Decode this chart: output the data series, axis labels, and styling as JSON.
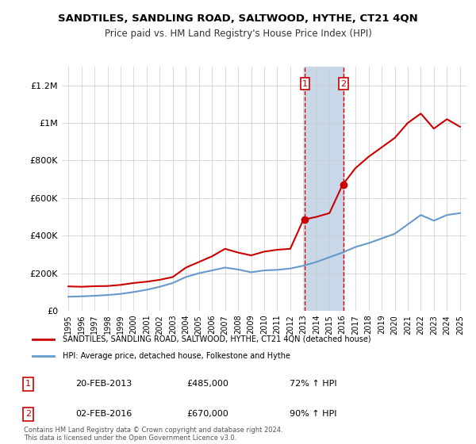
{
  "title": "SANDTILES, SANDLING ROAD, SALTWOOD, HYTHE, CT21 4QN",
  "subtitle": "Price paid vs. HM Land Registry's House Price Index (HPI)",
  "xlabel": "",
  "ylabel": "",
  "ylim": [
    0,
    1300000
  ],
  "yticks": [
    0,
    200000,
    400000,
    600000,
    800000,
    1000000,
    1200000
  ],
  "ytick_labels": [
    "£0",
    "£200K",
    "£400K",
    "£600K",
    "£800K",
    "£1M",
    "£1.2M"
  ],
  "bg_color": "#ffffff",
  "plot_bg_color": "#ffffff",
  "grid_color": "#cccccc",
  "legend_label_red": "SANDTILES, SANDLING ROAD, SALTWOOD, HYTHE, CT21 4QN (detached house)",
  "legend_label_blue": "HPI: Average price, detached house, Folkestone and Hythe",
  "transaction1_date": "20-FEB-2013",
  "transaction1_price": "£485,000",
  "transaction1_hpi": "72% ↑ HPI",
  "transaction1_year": 2013.12,
  "transaction2_date": "02-FEB-2016",
  "transaction2_price": "£670,000",
  "transaction2_hpi": "90% ↑ HPI",
  "transaction2_year": 2016.08,
  "footer": "Contains HM Land Registry data © Crown copyright and database right 2024.\nThis data is licensed under the Open Government Licence v3.0.",
  "red_color": "#cc0000",
  "blue_color": "#6699cc",
  "highlight_color": "#c8d8e8",
  "red_years": [
    1995,
    1996,
    1997,
    1998,
    1999,
    2000,
    2001,
    2002,
    2003,
    2004,
    2005,
    2006,
    2007,
    2008,
    2009,
    2010,
    2011,
    2012,
    2013,
    2014,
    2015,
    2016,
    2017,
    2018,
    2019,
    2020,
    2021,
    2022,
    2023,
    2024,
    2025
  ],
  "red_values": [
    130000,
    128000,
    131000,
    132000,
    138000,
    148000,
    155000,
    165000,
    180000,
    230000,
    260000,
    290000,
    330000,
    310000,
    295000,
    315000,
    325000,
    330000,
    485000,
    500000,
    520000,
    670000,
    760000,
    820000,
    870000,
    920000,
    1000000,
    1050000,
    970000,
    1020000,
    980000
  ],
  "blue_years": [
    1995,
    1996,
    1997,
    1998,
    1999,
    2000,
    2001,
    2002,
    2003,
    2004,
    2005,
    2006,
    2007,
    2008,
    2009,
    2010,
    2011,
    2012,
    2013,
    2014,
    2015,
    2016,
    2017,
    2018,
    2019,
    2020,
    2021,
    2022,
    2023,
    2024,
    2025
  ],
  "blue_values": [
    75000,
    77000,
    80000,
    84000,
    90000,
    100000,
    112000,
    128000,
    148000,
    180000,
    200000,
    215000,
    230000,
    220000,
    205000,
    215000,
    218000,
    225000,
    240000,
    260000,
    285000,
    310000,
    340000,
    360000,
    385000,
    410000,
    460000,
    510000,
    480000,
    510000,
    520000
  ]
}
